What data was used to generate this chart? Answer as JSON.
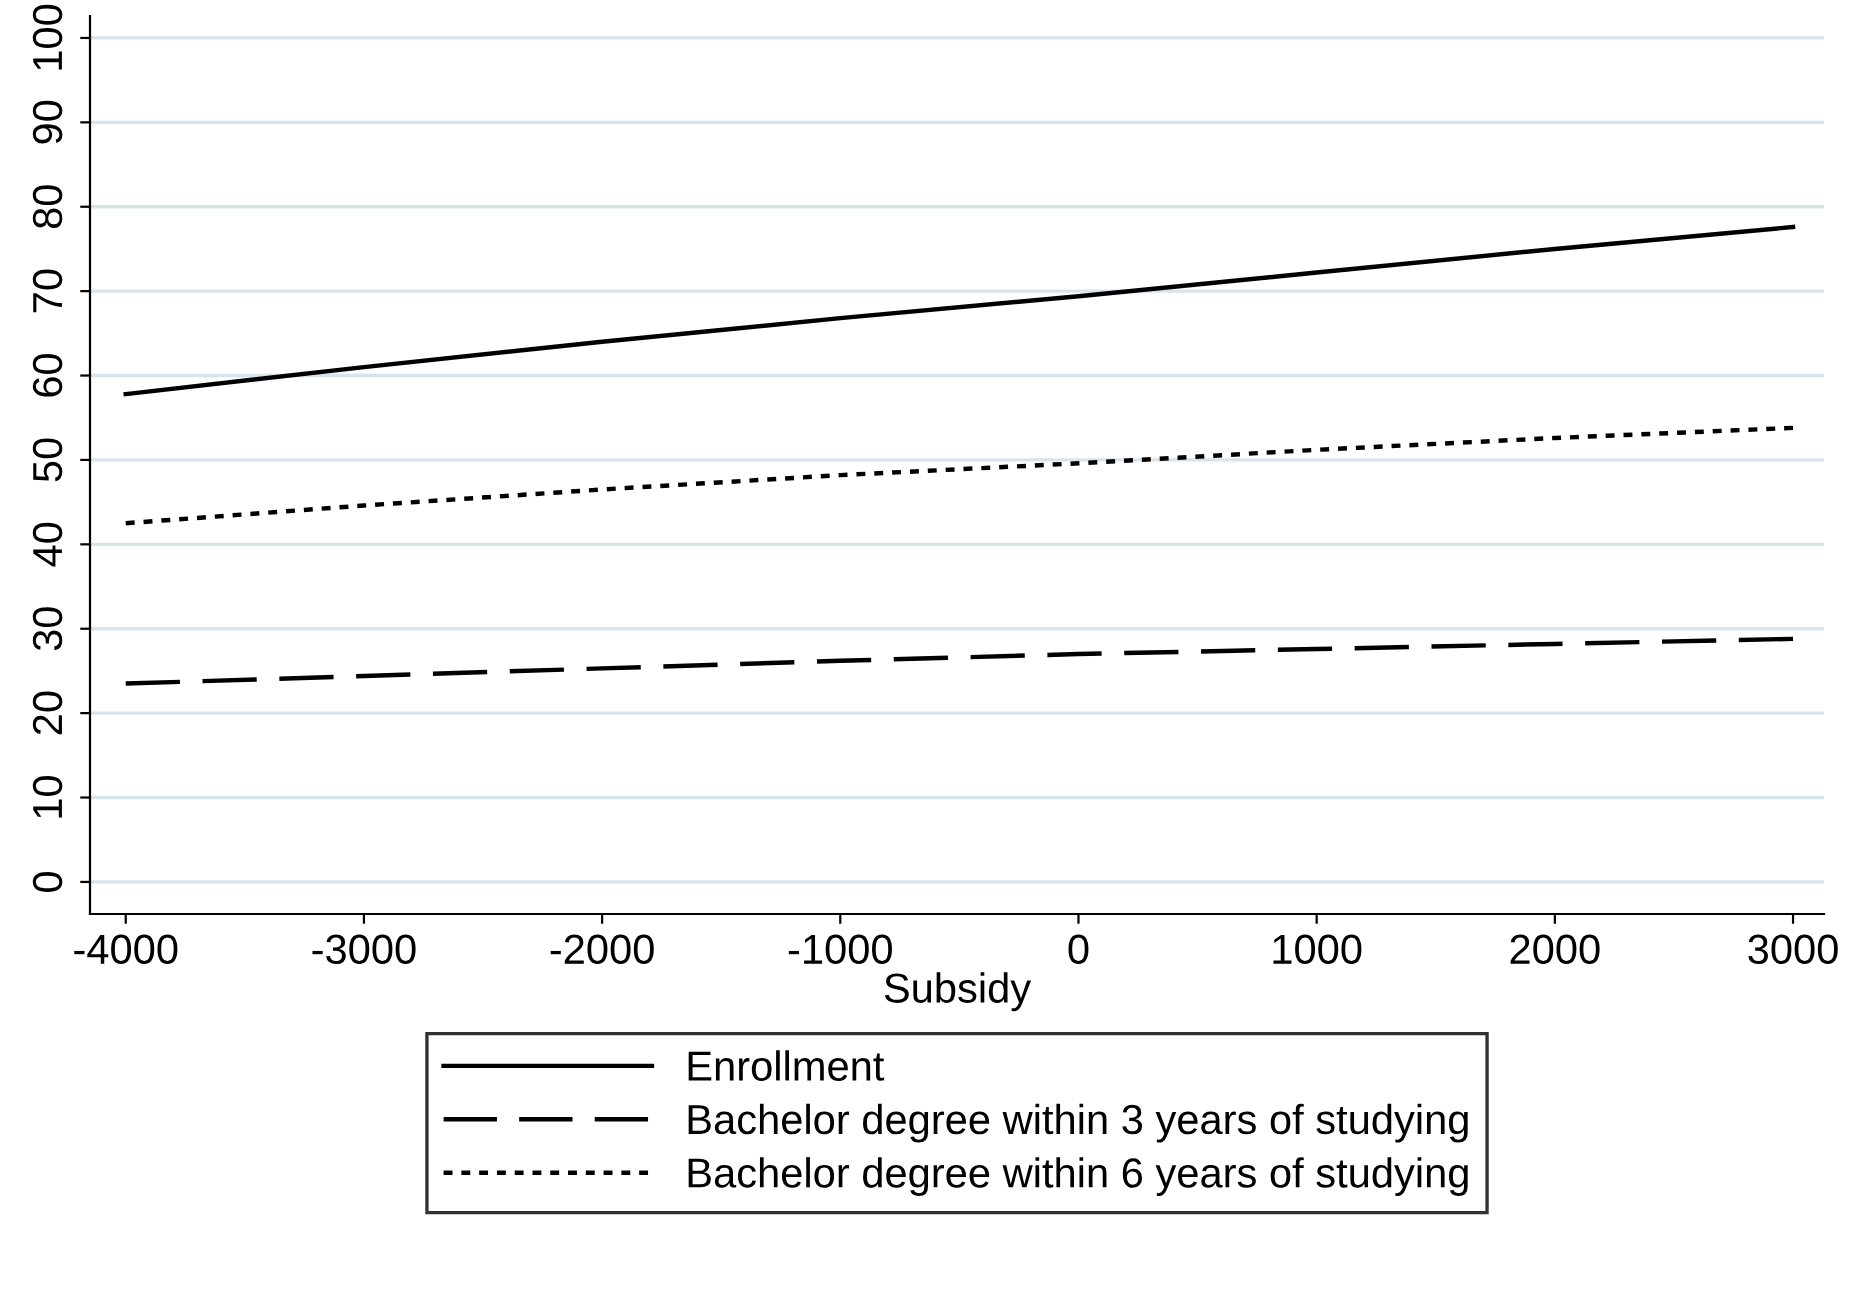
{
  "chart_data": {
    "type": "line",
    "xlabel": "Subsidy",
    "x": [
      -4000,
      -3000,
      -2000,
      -1000,
      0,
      1000,
      2000,
      3000
    ],
    "series": [
      {
        "name": "Enrollment",
        "color": "#000000",
        "line_style": "solid",
        "values": [
          57.8,
          61.0,
          64.0,
          66.8,
          69.4,
          72.2,
          75.0,
          77.6
        ]
      },
      {
        "name": "Bachelor degree within 3 years of studying",
        "color": "#000000",
        "line_style": "dashed",
        "values": [
          23.5,
          24.4,
          25.3,
          26.2,
          27.0,
          27.6,
          28.2,
          28.8
        ]
      },
      {
        "name": "Bachelor degree within 6 years of studying",
        "color": "#000000",
        "line_style": "dotted",
        "values": [
          42.5,
          44.6,
          46.5,
          48.2,
          49.6,
          51.2,
          52.6,
          53.8
        ]
      }
    ],
    "xlim": [
      -4150,
      3130
    ],
    "ylim": [
      -3.8,
      102.6
    ],
    "xticks": [
      -4000,
      -3000,
      -2000,
      -1000,
      0,
      1000,
      2000,
      3000
    ],
    "yticks": [
      0,
      10,
      20,
      30,
      40,
      50,
      60,
      70,
      80,
      90,
      100
    ],
    "grid": "y",
    "legend": "bottom",
    "marker": "none"
  }
}
